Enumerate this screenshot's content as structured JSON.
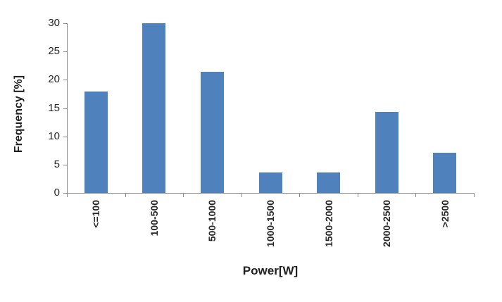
{
  "chart_data": {
    "type": "bar",
    "title": "",
    "xlabel": "Power[W]",
    "ylabel": "Frequency [%]",
    "categories": [
      "<=100",
      "100-500",
      "500-1000",
      "1000-1500",
      "1500-2000",
      "2000-2500",
      ">2500"
    ],
    "values": [
      17.9,
      30,
      21.4,
      3.6,
      3.6,
      14.3,
      7.1
    ],
    "ylim": [
      0,
      30
    ],
    "ytick_step": 5,
    "ytick_labels": [
      "0",
      "5",
      "10",
      "15",
      "20",
      "25",
      "30"
    ],
    "grid": "off",
    "legend": "none",
    "bar_color": "#4f81bd",
    "axis_color": "#8a8a8a",
    "label_color": "#262626",
    "title_color": "#1f1f1f",
    "background": "#ffffff"
  }
}
